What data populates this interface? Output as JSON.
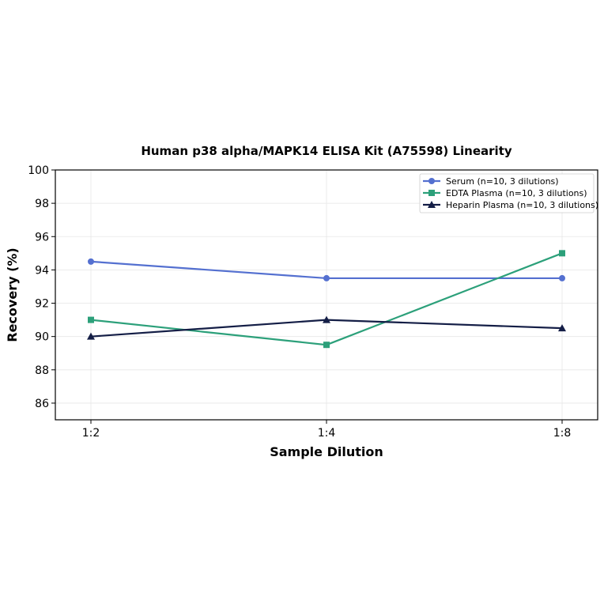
{
  "chart_data": {
    "type": "line",
    "title": "Human p38 alpha/MAPK14 ELISA Kit (A75598) Linearity",
    "xlabel": "Sample Dilution",
    "ylabel": "Recovery (%)",
    "categories": [
      "1:2",
      "1:4",
      "1:8"
    ],
    "ylim": [
      85,
      100
    ],
    "yticks": [
      86,
      88,
      90,
      92,
      94,
      96,
      98,
      100
    ],
    "grid": true,
    "legend_position": "top-right",
    "series": [
      {
        "name": "Serum (n=10, 3 dilutions)",
        "values": [
          94.5,
          93.5,
          93.5
        ],
        "color": "#5470d0",
        "marker": "circle"
      },
      {
        "name": "EDTA Plasma (n=10, 3 dilutions)",
        "values": [
          91.0,
          89.5,
          95.0
        ],
        "color": "#2ca07a",
        "marker": "square"
      },
      {
        "name": "Heparin Plasma (n=10, 3 dilutions)",
        "values": [
          90.0,
          91.0,
          90.5
        ],
        "color": "#141e46",
        "marker": "triangle"
      }
    ]
  }
}
